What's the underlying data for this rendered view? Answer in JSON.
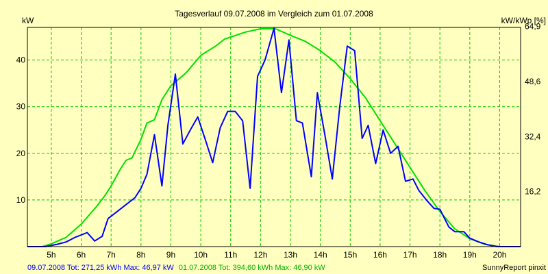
{
  "chart_data": {
    "type": "line",
    "title": "Tagesverlauf 09.07.2008 im Vergleich zum 01.07.2008",
    "ylabel_left": "kW",
    "ylabel_right": "kW/kWp [%]",
    "xlim": [
      4.2,
      20.7
    ],
    "ylim": [
      0,
      47
    ],
    "grid": true,
    "x_ticks": [
      {
        "value": 5,
        "label": "5h"
      },
      {
        "value": 6,
        "label": "6h"
      },
      {
        "value": 7,
        "label": "7h"
      },
      {
        "value": 8,
        "label": "8h"
      },
      {
        "value": 9,
        "label": "9h"
      },
      {
        "value": 10,
        "label": "10h"
      },
      {
        "value": 11,
        "label": "11h"
      },
      {
        "value": 12,
        "label": "12h"
      },
      {
        "value": 13,
        "label": "13h"
      },
      {
        "value": 14,
        "label": "14h"
      },
      {
        "value": 15,
        "label": "15h"
      },
      {
        "value": 16,
        "label": "16h"
      },
      {
        "value": 17,
        "label": "17h"
      },
      {
        "value": 18,
        "label": "18h"
      },
      {
        "value": 19,
        "label": "19h"
      },
      {
        "value": 20,
        "label": "20h"
      }
    ],
    "y_ticks_left": [
      {
        "value": 10,
        "label": "10"
      },
      {
        "value": 20,
        "label": "20"
      },
      {
        "value": 30,
        "label": "30"
      },
      {
        "value": 40,
        "label": "40"
      }
    ],
    "y_ticks_right": [
      {
        "value": 11.8,
        "label": "16,2"
      },
      {
        "value": 23.6,
        "label": "32,4"
      },
      {
        "value": 35.4,
        "label": "48,6"
      },
      {
        "value": 47.2,
        "label": "64,9"
      }
    ],
    "series": [
      {
        "name": "09.07.2008",
        "color": "#0000FF",
        "points": [
          [
            4.2,
            0
          ],
          [
            4.8,
            0
          ],
          [
            5.2,
            0.5
          ],
          [
            5.5,
            1
          ],
          [
            5.8,
            2
          ],
          [
            6.0,
            2.5
          ],
          [
            6.2,
            3
          ],
          [
            6.45,
            1.2
          ],
          [
            6.7,
            2.2
          ],
          [
            6.9,
            6
          ],
          [
            7.2,
            7.5
          ],
          [
            7.5,
            9
          ],
          [
            7.8,
            10.5
          ],
          [
            8.0,
            12.5
          ],
          [
            8.2,
            15.5
          ],
          [
            8.45,
            24
          ],
          [
            8.7,
            13
          ],
          [
            8.9,
            26
          ],
          [
            9.15,
            37
          ],
          [
            9.4,
            22
          ],
          [
            9.65,
            25
          ],
          [
            9.9,
            27.8
          ],
          [
            10.15,
            23
          ],
          [
            10.4,
            18
          ],
          [
            10.65,
            25.5
          ],
          [
            10.9,
            29
          ],
          [
            11.15,
            29
          ],
          [
            11.4,
            27
          ],
          [
            11.65,
            12.5
          ],
          [
            11.9,
            36.5
          ],
          [
            12.15,
            40
          ],
          [
            12.45,
            46.8
          ],
          [
            12.7,
            33
          ],
          [
            12.95,
            44.3
          ],
          [
            13.2,
            27
          ],
          [
            13.4,
            26.5
          ],
          [
            13.7,
            15
          ],
          [
            13.9,
            33
          ],
          [
            14.15,
            24
          ],
          [
            14.4,
            14.5
          ],
          [
            14.65,
            30
          ],
          [
            14.9,
            43
          ],
          [
            15.15,
            42
          ],
          [
            15.4,
            23.2
          ],
          [
            15.6,
            26
          ],
          [
            15.85,
            17.8
          ],
          [
            16.1,
            25
          ],
          [
            16.35,
            20
          ],
          [
            16.6,
            21.5
          ],
          [
            16.85,
            14
          ],
          [
            17.1,
            14.5
          ],
          [
            17.3,
            12
          ],
          [
            17.55,
            10
          ],
          [
            17.8,
            8.2
          ],
          [
            18.0,
            8
          ],
          [
            18.3,
            4.2
          ],
          [
            18.5,
            3.2
          ],
          [
            18.8,
            3.2
          ],
          [
            19.0,
            1.8
          ],
          [
            19.3,
            1
          ],
          [
            19.6,
            0.4
          ],
          [
            19.9,
            0
          ],
          [
            20.7,
            0
          ]
        ]
      },
      {
        "name": "01.07.2008",
        "color": "#00E000",
        "points": [
          [
            4.2,
            0
          ],
          [
            4.7,
            0
          ],
          [
            5.0,
            0.6
          ],
          [
            5.5,
            2
          ],
          [
            6.0,
            4.8
          ],
          [
            6.5,
            8.5
          ],
          [
            6.8,
            11
          ],
          [
            7.0,
            13
          ],
          [
            7.3,
            16.5
          ],
          [
            7.5,
            18.5
          ],
          [
            7.7,
            19
          ],
          [
            8.0,
            23
          ],
          [
            8.2,
            26.5
          ],
          [
            8.45,
            27.2
          ],
          [
            8.7,
            31.5
          ],
          [
            9.0,
            34.5
          ],
          [
            9.5,
            37.2
          ],
          [
            10.0,
            41
          ],
          [
            10.5,
            43
          ],
          [
            10.8,
            44.5
          ],
          [
            11.5,
            46
          ],
          [
            12.0,
            46.7
          ],
          [
            12.5,
            46.7
          ],
          [
            13.0,
            45.3
          ],
          [
            13.5,
            44
          ],
          [
            14.0,
            42
          ],
          [
            14.5,
            39.5
          ],
          [
            15.0,
            36
          ],
          [
            15.5,
            32
          ],
          [
            16.0,
            27
          ],
          [
            16.5,
            22
          ],
          [
            17.0,
            17
          ],
          [
            17.5,
            12
          ],
          [
            18.0,
            7.5
          ],
          [
            18.5,
            3.8
          ],
          [
            19.0,
            1.7
          ],
          [
            19.5,
            0.5
          ],
          [
            20.0,
            0
          ],
          [
            20.7,
            0
          ]
        ]
      }
    ]
  },
  "footer": {
    "blue_text": "09.07.2008 Tot: 271,25 kWh Max: 46,97 kW",
    "green_text": "01.07.2008 Tot: 394,60 kWh Max: 46,90 kW",
    "credit": "SunnyReport pinxit"
  }
}
